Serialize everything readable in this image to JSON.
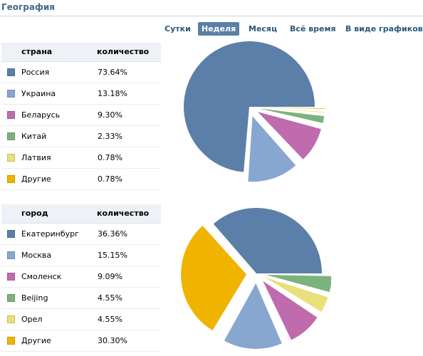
{
  "header": {
    "title": "География"
  },
  "period_tabs": [
    {
      "label": "Сутки",
      "active": false
    },
    {
      "label": "Неделя",
      "active": true
    },
    {
      "label": "Месяц",
      "active": false
    },
    {
      "label": "Всё время",
      "active": false
    },
    {
      "label": "В виде графиков",
      "active": false
    }
  ],
  "country_table": {
    "col_name": "страна",
    "col_count": "количество",
    "rows": [
      {
        "label": "Россия",
        "value": "73.64%",
        "color": "#5b7fa8"
      },
      {
        "label": "Украина",
        "value": "13.18%",
        "color": "#88a7d0"
      },
      {
        "label": "Беларусь",
        "value": "9.30%",
        "color": "#bf6bae"
      },
      {
        "label": "Китай",
        "value": "2.33%",
        "color": "#7ab37c"
      },
      {
        "label": "Латвия",
        "value": "0.78%",
        "color": "#e8e07a"
      },
      {
        "label": "Другие",
        "value": "0.78%",
        "color": "#f0b400"
      }
    ]
  },
  "city_table": {
    "col_name": "город",
    "col_count": "количество",
    "rows": [
      {
        "label": "Екатеринбург",
        "value": "36.36%",
        "color": "#5b7fa8"
      },
      {
        "label": "Москва",
        "value": "15.15%",
        "color": "#88a7d0"
      },
      {
        "label": "Смоленск",
        "value": "9.09%",
        "color": "#bf6bae"
      },
      {
        "label": "Beijing",
        "value": "4.55%",
        "color": "#7ab37c"
      },
      {
        "label": "Орел",
        "value": "4.55%",
        "color": "#e8e07a"
      },
      {
        "label": "Другие",
        "value": "30.30%",
        "color": "#f0b400"
      }
    ]
  },
  "chart_data": [
    {
      "type": "pie",
      "categories": [
        "Россия",
        "Украина",
        "Беларусь",
        "Китай",
        "Латвия",
        "Другие"
      ],
      "values": [
        73.64,
        13.18,
        9.3,
        2.33,
        0.78,
        0.78
      ],
      "colors": [
        "#5b7fa8",
        "#88a7d0",
        "#bf6bae",
        "#7ab37c",
        "#e8e07a",
        "#f0b400"
      ],
      "exploded": [
        false,
        true,
        true,
        true,
        true,
        true
      ]
    },
    {
      "type": "pie",
      "categories": [
        "Екатеринбург",
        "Москва",
        "Смоленск",
        "Beijing",
        "Орел",
        "Другие"
      ],
      "values": [
        36.36,
        15.15,
        9.09,
        4.55,
        4.55,
        30.3
      ],
      "colors": [
        "#5b7fa8",
        "#88a7d0",
        "#bf6bae",
        "#7ab37c",
        "#e8e07a",
        "#f0b400"
      ],
      "exploded": [
        false,
        true,
        true,
        true,
        true,
        true
      ]
    }
  ]
}
